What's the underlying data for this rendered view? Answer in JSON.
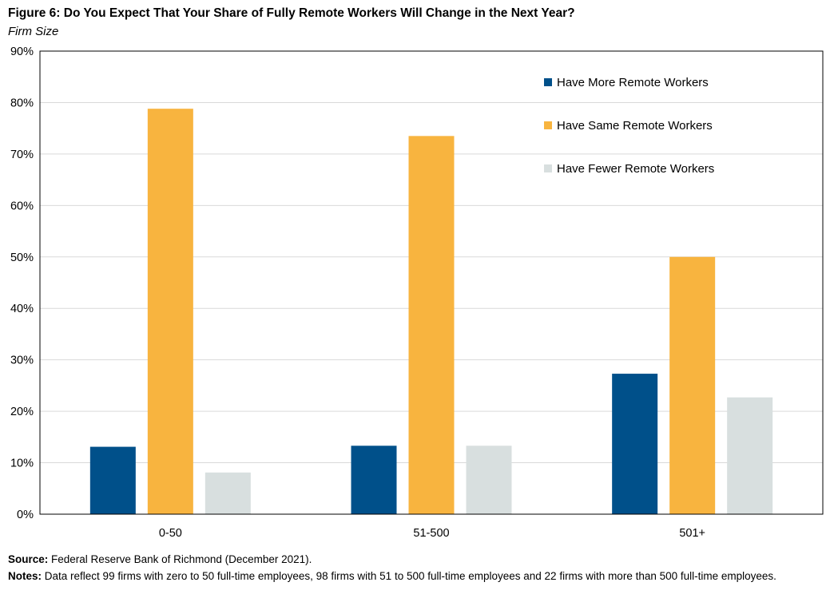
{
  "title": "Figure 6: Do You Expect That Your Share of Fully Remote Workers Will Change in the Next Year?",
  "subtitle": "Firm Size",
  "source": {
    "label": "Source:",
    "text": "Federal Reserve Bank of Richmond (December 2021)."
  },
  "notes": {
    "label": "Notes:",
    "text": "Data reflect 99 firms with zero to 50  full-time employees, 98 firms with 51 to 500  full-time employees and 22 firms with more than 500  full-time employees."
  },
  "colors": {
    "more": "#00508a",
    "same": "#f8b43f",
    "fewer": "#d8dfdf",
    "grid": "#d9d9d9",
    "frame": "#000000"
  },
  "chart_data": {
    "type": "bar",
    "categories": [
      "0-50",
      "51-500",
      "501+"
    ],
    "series": [
      {
        "name": "Have More Remote Workers",
        "values": [
          13.1,
          13.3,
          27.3
        ],
        "color": "#00508a"
      },
      {
        "name": "Have Same Remote Workers",
        "values": [
          78.8,
          73.5,
          50.0
        ],
        "color": "#f8b43f"
      },
      {
        "name": "Have Fewer Remote Workers",
        "values": [
          8.1,
          13.3,
          22.7
        ],
        "color": "#d8dfdf"
      }
    ],
    "yticks": [
      "0%",
      "10%",
      "20%",
      "30%",
      "40%",
      "50%",
      "60%",
      "70%",
      "80%",
      "90%"
    ],
    "ylim": [
      0,
      90
    ],
    "grid": true,
    "legend_position": "top-right"
  }
}
